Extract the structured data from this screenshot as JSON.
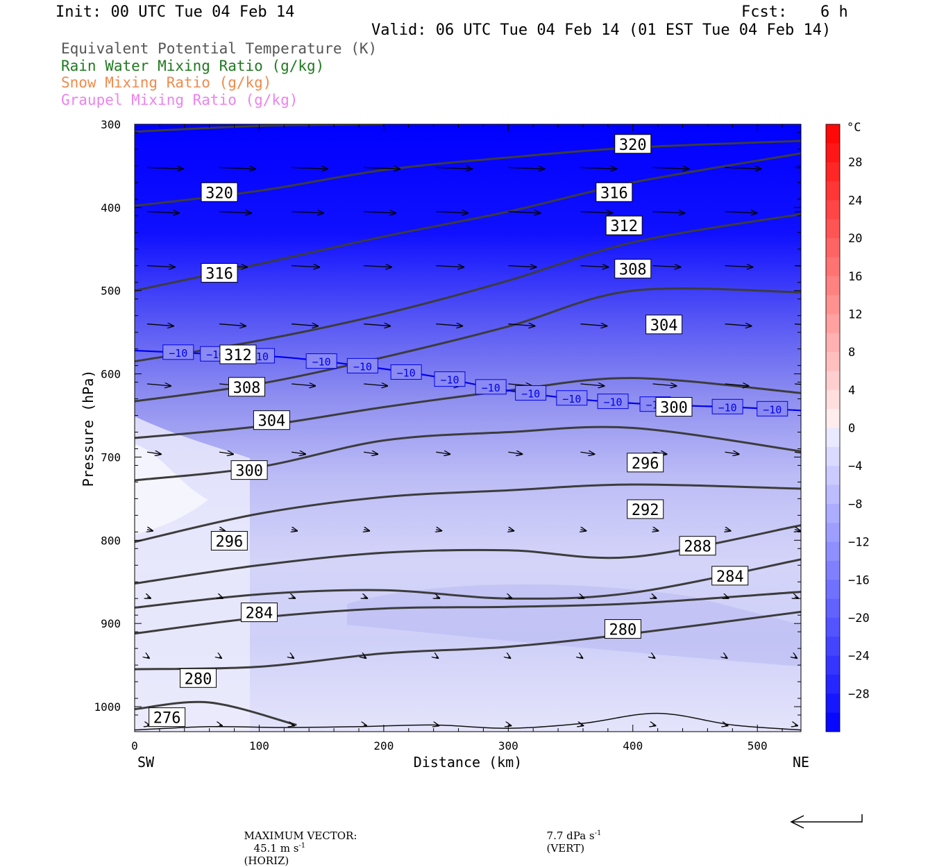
{
  "header": {
    "init": "Init: 00 UTC Tue 04 Feb 14",
    "fcst_label": "Fcst:",
    "fcst_value": "6 h",
    "valid": "Valid: 06 UTC Tue 04 Feb 14 (01 EST Tue 04 Feb 14)"
  },
  "legend": [
    {
      "label": "Equivalent Potential Temperature (K)",
      "color": "#555555"
    },
    {
      "label": "Rain Water Mixing Ratio (g/kg)",
      "color": "#1f7a1f"
    },
    {
      "label": "Snow Mixing Ratio (g/kg)",
      "color": "#f08a4b"
    },
    {
      "label": "Graupel Mixing Ratio (g/kg)",
      "color": "#ee82ee"
    }
  ],
  "footer": {
    "max_vector_label": "MAXIMUM VECTOR:",
    "horiz": "45.1 m s",
    "horiz_unit": "(HORIZ)",
    "vert": "7.7 dPa s",
    "vert_unit": "(VERT)",
    "exp": "-1"
  },
  "chart_data": {
    "type": "contour",
    "xlabel": "Distance (km)",
    "ylabel": "Pressure (hPa)",
    "x_ticks": [
      0,
      100,
      200,
      300,
      400,
      500
    ],
    "y_ticks": [
      300,
      400,
      500,
      600,
      700,
      800,
      900,
      1000
    ],
    "xlim": [
      0,
      535
    ],
    "ylim": [
      1030,
      300
    ],
    "x_end_labels": {
      "left": "SW",
      "right": "NE"
    },
    "colorbar": {
      "unit": "°C",
      "ticks": [
        "28",
        "24",
        "20",
        "16",
        "12",
        "8",
        "4",
        "0",
        "−4",
        "−8",
        "−12",
        "−16",
        "−20",
        "−24",
        "−28"
      ],
      "range": [
        -32,
        32
      ],
      "warm_color": "#ff0000",
      "cold_color": "#0000ff"
    },
    "theta_e_contours": [
      {
        "level": 320,
        "points": [
          [
            0,
            309
          ],
          [
            100,
            302
          ],
          [
            200,
            300
          ]
        ]
      },
      {
        "level": 320,
        "points": [
          [
            0,
            398
          ],
          [
            100,
            380
          ],
          [
            200,
            355
          ],
          [
            300,
            340
          ],
          [
            400,
            328
          ],
          [
            535,
            320
          ]
        ]
      },
      {
        "level": 316,
        "points": [
          [
            0,
            500
          ],
          [
            100,
            468
          ],
          [
            200,
            435
          ],
          [
            300,
            405
          ],
          [
            400,
            370
          ],
          [
            535,
            335
          ]
        ]
      },
      {
        "level": 312,
        "points": [
          [
            0,
            585
          ],
          [
            100,
            560
          ],
          [
            200,
            528
          ],
          [
            300,
            488
          ],
          [
            400,
            442
          ],
          [
            535,
            408
          ]
        ]
      },
      {
        "level": 308,
        "points": [
          [
            0,
            633
          ],
          [
            100,
            612
          ],
          [
            200,
            580
          ],
          [
            300,
            543
          ],
          [
            400,
            500
          ],
          [
            535,
            502
          ]
        ]
      },
      {
        "level": 304,
        "points": [
          [
            0,
            677
          ],
          [
            100,
            663
          ],
          [
            200,
            640
          ],
          [
            300,
            620
          ],
          [
            400,
            605
          ],
          [
            535,
            623
          ]
        ]
      },
      {
        "level": 300,
        "points": [
          [
            0,
            728
          ],
          [
            100,
            712
          ],
          [
            200,
            680
          ],
          [
            300,
            670
          ],
          [
            400,
            665
          ],
          [
            535,
            693
          ]
        ]
      },
      {
        "level": 296,
        "points": [
          [
            0,
            802
          ],
          [
            100,
            768
          ],
          [
            200,
            748
          ],
          [
            300,
            740
          ],
          [
            400,
            733
          ],
          [
            535,
            738
          ]
        ]
      },
      {
        "level": 292,
        "points": [
          [
            0,
            852
          ],
          [
            100,
            830
          ],
          [
            200,
            815
          ],
          [
            300,
            812
          ],
          [
            400,
            820
          ],
          [
            535,
            782
          ]
        ]
      },
      {
        "level": 288,
        "points": [
          [
            0,
            881
          ],
          [
            100,
            865
          ],
          [
            200,
            860
          ],
          [
            300,
            870
          ],
          [
            400,
            863
          ],
          [
            535,
            823
          ]
        ]
      },
      {
        "level": 284,
        "points": [
          [
            0,
            912
          ],
          [
            100,
            893
          ],
          [
            200,
            882
          ],
          [
            300,
            880
          ],
          [
            400,
            876
          ],
          [
            535,
            862
          ]
        ]
      },
      {
        "level": 280,
        "points": [
          [
            0,
            955
          ],
          [
            100,
            952
          ],
          [
            200,
            936
          ],
          [
            300,
            928
          ],
          [
            400,
            912
          ],
          [
            535,
            886
          ]
        ]
      },
      {
        "level": 276,
        "points": [
          [
            0,
            1003
          ],
          [
            60,
            995
          ],
          [
            130,
            1022
          ]
        ]
      }
    ],
    "theta_e_labels": [
      {
        "text": "320",
        "x": 400,
        "y": 324
      },
      {
        "text": "320",
        "x": 68,
        "y": 382
      },
      {
        "text": "316",
        "x": 385,
        "y": 382
      },
      {
        "text": "316",
        "x": 68,
        "y": 479
      },
      {
        "text": "312",
        "x": 393,
        "y": 422
      },
      {
        "text": "312",
        "x": 83,
        "y": 577
      },
      {
        "text": "308",
        "x": 400,
        "y": 474
      },
      {
        "text": "308",
        "x": 90,
        "y": 616
      },
      {
        "text": "304",
        "x": 425,
        "y": 541
      },
      {
        "text": "304",
        "x": 110,
        "y": 656
      },
      {
        "text": "300",
        "x": 433,
        "y": 640
      },
      {
        "text": "300",
        "x": 92,
        "y": 716
      },
      {
        "text": "296",
        "x": 410,
        "y": 707
      },
      {
        "text": "296",
        "x": 76,
        "y": 801
      },
      {
        "text": "292",
        "x": 410,
        "y": 763
      },
      {
        "text": "288",
        "x": 452,
        "y": 807
      },
      {
        "text": "284",
        "x": 478,
        "y": 843
      },
      {
        "text": "284",
        "x": 100,
        "y": 887
      },
      {
        "text": "280",
        "x": 392,
        "y": 907
      },
      {
        "text": "280",
        "x": 51,
        "y": 966
      },
      {
        "text": "276",
        "x": 26,
        "y": 1013
      }
    ],
    "isotherm_minus10": {
      "level": "−10",
      "points": [
        [
          0,
          572
        ],
        [
          60,
          576
        ],
        [
          120,
          580
        ],
        [
          180,
          590
        ],
        [
          240,
          603
        ],
        [
          300,
          620
        ],
        [
          360,
          631
        ],
        [
          420,
          637
        ],
        [
          480,
          640
        ],
        [
          535,
          644
        ]
      ],
      "label_x": [
        35,
        65,
        100,
        150,
        183,
        218,
        253,
        286,
        318,
        351,
        384,
        418,
        476,
        512
      ]
    },
    "wind_vectors": {
      "rows": [
        {
          "p": 352,
          "dx": 52,
          "dy": 2
        },
        {
          "p": 405,
          "dx": 46,
          "dy": 2
        },
        {
          "p": 470,
          "dx": 40,
          "dy": 2
        },
        {
          "p": 540,
          "dx": 38,
          "dy": 3
        },
        {
          "p": 612,
          "dx": 34,
          "dy": 3
        },
        {
          "p": 694,
          "dx": 20,
          "dy": 3
        },
        {
          "p": 787,
          "dx": 8,
          "dy": 2
        },
        {
          "p": 868,
          "dx": 5,
          "dy": 2
        },
        {
          "p": 940,
          "dx": 3,
          "dy": 2
        },
        {
          "p": 1022,
          "dx": 4,
          "dy": 1
        }
      ],
      "x": [
        10,
        68,
        126,
        184,
        242,
        300,
        358,
        416,
        474,
        530
      ]
    },
    "surface_pressure": [
      [
        0,
        1028
      ],
      [
        60,
        1024
      ],
      [
        120,
        1025
      ],
      [
        180,
        1024
      ],
      [
        240,
        1022
      ],
      [
        300,
        1026
      ],
      [
        360,
        1020
      ],
      [
        420,
        1008
      ],
      [
        480,
        1022
      ],
      [
        535,
        1028
      ]
    ]
  }
}
